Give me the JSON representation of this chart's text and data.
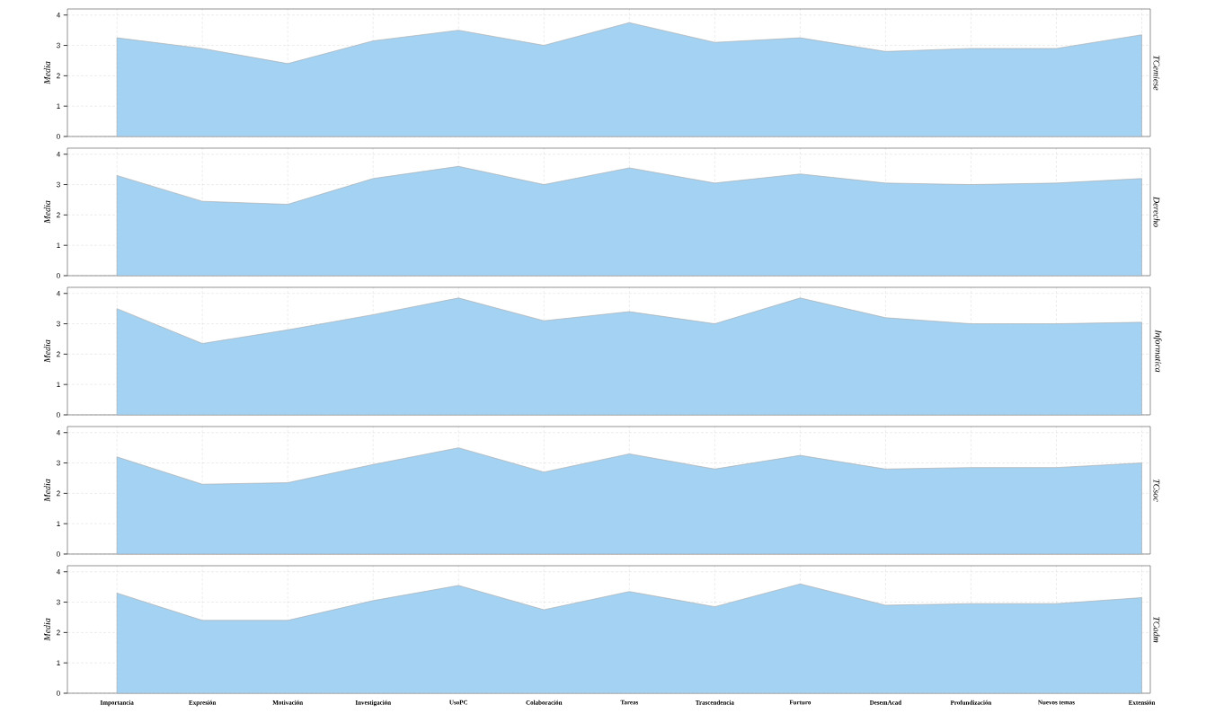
{
  "chart_data": [
    {
      "type": "area",
      "title": "TCemiese",
      "ylabel": "Media",
      "categories": [
        null,
        null,
        null,
        null,
        null,
        null,
        null,
        null,
        null,
        null,
        null,
        null,
        null
      ],
      "values": [
        3.25,
        2.9,
        2.4,
        3.15,
        3.5,
        3.0,
        3.75,
        3.1,
        3.25,
        2.8,
        2.9,
        2.9,
        3.35
      ],
      "color": "#a3d2f3",
      "ylim": [
        0,
        4.2
      ],
      "yticks": [
        0,
        1,
        2,
        3,
        4
      ],
      "grid": true,
      "tick_labels": "y"
    },
    {
      "type": "area",
      "title": "Derecho",
      "ylabel": "Media",
      "categories": [
        null,
        null,
        null,
        null,
        null,
        null,
        null,
        null,
        null,
        null,
        null,
        null,
        null
      ],
      "values": [
        3.3,
        2.45,
        2.35,
        3.2,
        3.6,
        3.0,
        3.55,
        3.05,
        3.35,
        3.05,
        3.0,
        3.05,
        3.2
      ],
      "color": "#a3d2f3",
      "ylim": [
        0,
        4.2
      ],
      "yticks": [
        0,
        1,
        2,
        3,
        4
      ],
      "grid": true,
      "tick_labels": "y"
    },
    {
      "type": "area",
      "title": "Informatica",
      "ylabel": "Media",
      "categories": [
        null,
        null,
        null,
        null,
        null,
        null,
        null,
        null,
        null,
        null,
        null,
        null,
        null
      ],
      "values": [
        3.5,
        2.35,
        2.8,
        3.3,
        3.85,
        3.1,
        3.4,
        3.0,
        3.85,
        3.2,
        3.0,
        3.0,
        3.05
      ],
      "color": "#a3d2f3",
      "ylim": [
        0,
        4.2
      ],
      "yticks": [
        0,
        1,
        2,
        3,
        4
      ],
      "grid": true,
      "tick_labels": "y"
    },
    {
      "type": "area",
      "title": "TCsoc",
      "ylabel": "Media",
      "categories": [
        null,
        null,
        null,
        null,
        null,
        null,
        null,
        null,
        null,
        null,
        null,
        null,
        null
      ],
      "values": [
        3.2,
        2.3,
        2.35,
        2.95,
        3.5,
        2.7,
        3.3,
        2.8,
        3.25,
        2.8,
        2.85,
        2.85,
        3.0
      ],
      "color": "#a3d2f3",
      "ylim": [
        0,
        4.2
      ],
      "yticks": [
        0,
        1,
        2,
        3,
        4
      ],
      "grid": true,
      "tick_labels": "y"
    },
    {
      "type": "area",
      "title": "TCadm",
      "ylabel": "Media",
      "categories": [
        "Importancia",
        "Expresión",
        "Motivación",
        "Investigación",
        "UsoPC",
        "Colaboración",
        "Tareas",
        "Trascendencia",
        "Furturo",
        "DesemAcad",
        "Profundización",
        "Nuevos temas",
        "Extensión"
      ],
      "values": [
        3.3,
        2.4,
        2.4,
        3.05,
        3.55,
        2.75,
        3.35,
        2.85,
        3.6,
        2.9,
        2.95,
        2.95,
        3.15
      ],
      "color": "#a3d2f3",
      "ylim": [
        0,
        4.2
      ],
      "yticks": [
        0,
        1,
        2,
        3,
        4
      ],
      "grid": true
    }
  ]
}
